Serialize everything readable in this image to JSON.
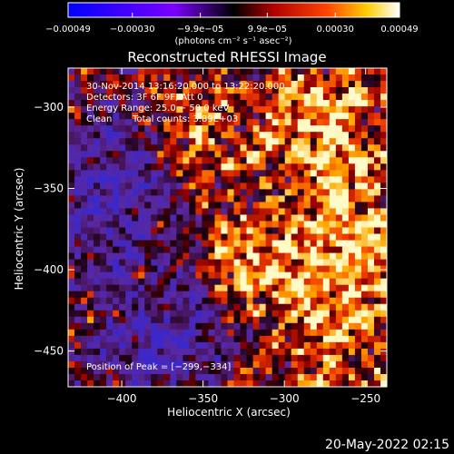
{
  "chart_data": {
    "type": "heatmap",
    "title": "Reconstructed RHESSI Image",
    "xlabel": "Heliocentric X (arcsec)",
    "ylabel": "Heliocentric Y (arcsec)",
    "xlim": [
      -433,
      -237
    ],
    "ylim": [
      -472,
      -276
    ],
    "x_ticks": [
      -400,
      -350,
      -300,
      -250
    ],
    "y_ticks": [
      -300,
      -350,
      -400,
      -450
    ],
    "x_tick_labels": [
      "−400",
      "−350",
      "−300",
      "−250"
    ],
    "y_tick_labels": [
      "−300",
      "−350",
      "−400",
      "−450"
    ],
    "colorbar": {
      "min": -0.00049,
      "max": 0.00049,
      "ticks": [
        -0.00049,
        -0.0003,
        -9.9e-05,
        9.9e-05,
        0.0003,
        0.00049
      ],
      "tick_labels": [
        "−0.00049",
        "−0.00030",
        "−9.9e−05",
        "9.9e−05",
        "0.00030",
        "0.00049"
      ],
      "unit_label": "(photons cm⁻² s⁻¹ asec⁻²)",
      "colors": [
        "#0000ff",
        "#ffffff",
        "#000000",
        "#ff3300",
        "#ffcc00",
        "#ffffff"
      ]
    },
    "annotations": {
      "time_range": "30-Nov-2014 13:16:20.000 to 13:22:20.000",
      "detectors": "Detectors: 3F 6F 9F, Att 0",
      "energy_range": "Energy Range: 25.0 − 50.0 keV",
      "clean": "Clean",
      "total_counts": "Total counts: 3.89E+03",
      "peak": "Position of Peak = [−299,−334]"
    },
    "peak_position": [
      -299,
      -334
    ],
    "grid": false
  },
  "footer": {
    "date": "20-May-2022 02:15"
  }
}
